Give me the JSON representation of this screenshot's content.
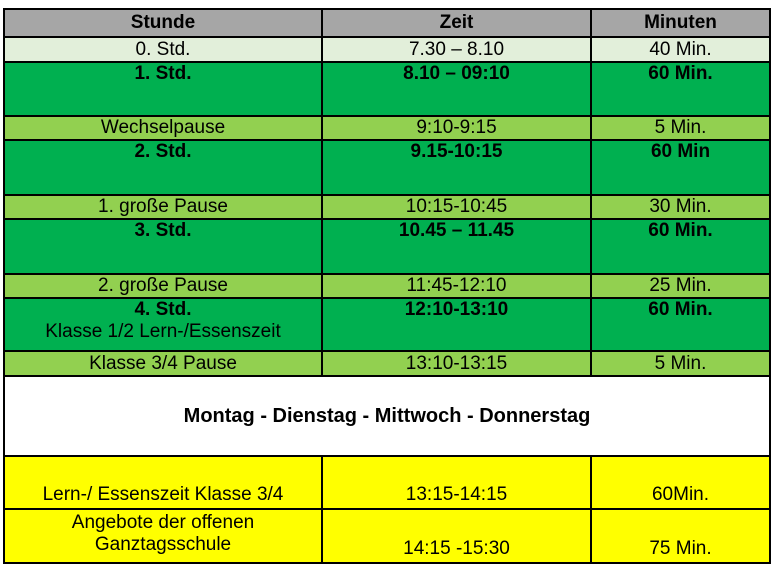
{
  "header": {
    "col1": "Stunde",
    "col2": "Zeit",
    "col3": "Minuten"
  },
  "rows": [
    {
      "stunde": "0. Std.",
      "zeit": "7.30 – 8.10",
      "minuten": "40 Min."
    },
    {
      "stunde": "1.  Std.",
      "zeit": "8.10 – 09:10",
      "minuten": "60 Min."
    },
    {
      "stunde": "Wechselpause",
      "zeit": "9:10-9:15",
      "minuten": "5 Min."
    },
    {
      "stunde": "2.  Std.",
      "zeit": "9.15-10:15",
      "minuten": "60 Min"
    },
    {
      "stunde": "1. große Pause",
      "zeit": "10:15-10:45",
      "minuten": "30 Min."
    },
    {
      "stunde": "3.  Std.",
      "zeit": "10.45 – 11.45",
      "minuten": "60 Min."
    },
    {
      "stunde": "2. große Pause",
      "zeit": "11:45-12:10",
      "minuten": "25 Min."
    },
    {
      "stunde": "4. Std.",
      "stunde_sub": "Klasse 1/2 Lern-/Essenszeit",
      "zeit": "12:10-13:10",
      "minuten": "60 Min."
    },
    {
      "stunde": "Klasse 3/4 Pause",
      "zeit": "13:10-13:15",
      "minuten": "5 Min."
    }
  ],
  "banner": "Montag - Dienstag - Mittwoch - Donnerstag",
  "afternoon": [
    {
      "stunde": "Lern-/ Essenszeit Klasse 3/4",
      "zeit": "13:15-14:15",
      "minuten": "60Min."
    },
    {
      "stunde_line1": "Angebote der offenen",
      "stunde_line2": "Ganztagsschule",
      "zeit": "14:15 -15:30",
      "minuten": "75 Min."
    }
  ],
  "colors": {
    "header": "#a6a6a6",
    "pale_green": "#e2efda",
    "dark_green": "#00b050",
    "light_green": "#92d050",
    "yellow": "#ffff00"
  }
}
